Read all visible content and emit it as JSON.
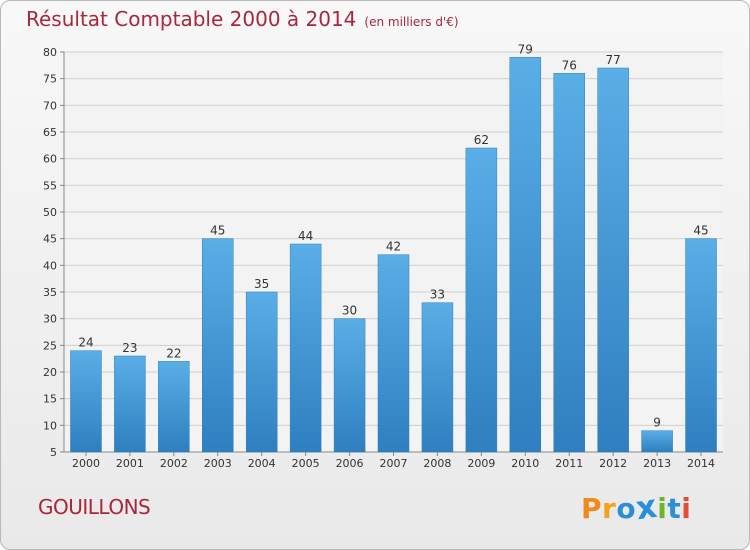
{
  "title": "Résultat Comptable 2000 à 2014",
  "subtitle": "(en milliers d'€)",
  "footer_label": "GOUILLONS",
  "logo_text": "Proxiti",
  "colors": {
    "title": "#a8273d",
    "bar_top": "#5aaee6",
    "bar_bottom": "#2f7fc0",
    "grid": "#cfcfcf",
    "logo": [
      "#f08a1c",
      "#f4a21a",
      "#2a8fd6",
      "#2a8fd6",
      "#6fb52c",
      "#2a8fd6",
      "#e94b2f"
    ]
  },
  "chart_data": {
    "type": "bar",
    "title": "Résultat Comptable 2000 à 2014",
    "subtitle": "(en milliers d'€)",
    "categories": [
      "2000",
      "2001",
      "2002",
      "2003",
      "2004",
      "2005",
      "2006",
      "2007",
      "2008",
      "2009",
      "2010",
      "2011",
      "2012",
      "2013",
      "2014"
    ],
    "values": [
      24,
      23,
      22,
      45,
      35,
      44,
      30,
      42,
      33,
      62,
      79,
      76,
      77,
      9,
      45
    ],
    "ylim": [
      5,
      80
    ],
    "yticks": [
      5,
      10,
      15,
      20,
      25,
      30,
      35,
      40,
      45,
      50,
      55,
      60,
      65,
      70,
      75,
      80
    ],
    "grid": true,
    "xlabel": "",
    "ylabel": ""
  }
}
